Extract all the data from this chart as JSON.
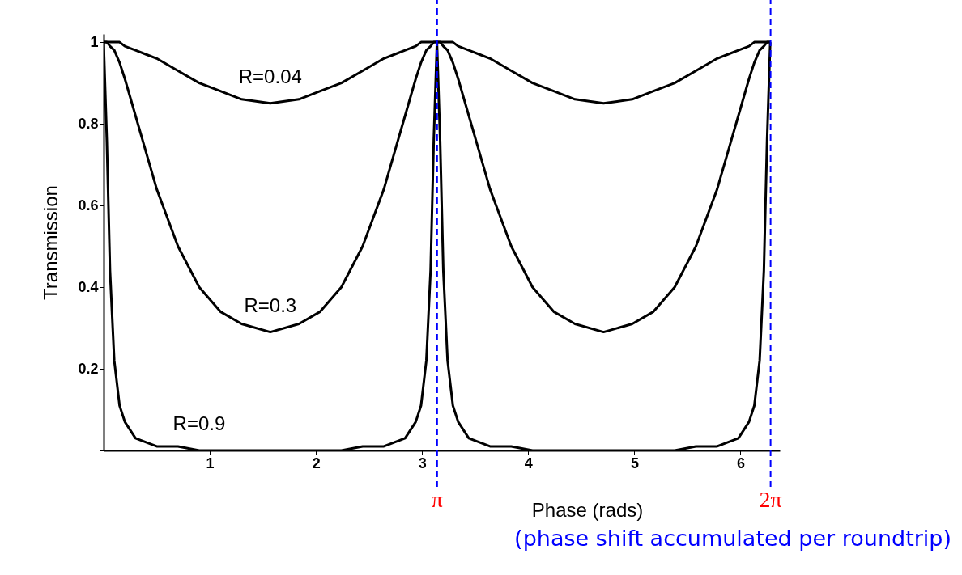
{
  "chart_data": {
    "type": "line",
    "xlabel": "Phase (rads)",
    "ylabel": "Transmission",
    "x": [
      0,
      0.03,
      0.06,
      0.1,
      0.15,
      0.2,
      0.3,
      0.4,
      0.5,
      0.7,
      0.9,
      1.1,
      1.3,
      1.57,
      1.84,
      2.04,
      2.24,
      2.44,
      2.64,
      2.74,
      2.84,
      2.94,
      2.99,
      3.04,
      3.08,
      3.11,
      3.14,
      3.17,
      3.2,
      3.24,
      3.29,
      3.34,
      3.44,
      3.54,
      3.64,
      3.84,
      4.04,
      4.24,
      4.44,
      4.71,
      4.98,
      5.18,
      5.38,
      5.58,
      5.78,
      5.88,
      5.98,
      6.08,
      6.13,
      6.18,
      6.22,
      6.25,
      6.28
    ],
    "series": [
      {
        "name": "R=0.04",
        "color": "#000000",
        "values": [
          1,
          1,
          1,
          1,
          1,
          0.99,
          0.98,
          0.97,
          0.96,
          0.93,
          0.9,
          0.88,
          0.86,
          0.85,
          0.86,
          0.88,
          0.9,
          0.93,
          0.96,
          0.97,
          0.98,
          0.99,
          1,
          1,
          1,
          1,
          1,
          1,
          1,
          1,
          1,
          0.99,
          0.98,
          0.97,
          0.96,
          0.93,
          0.9,
          0.88,
          0.86,
          0.85,
          0.86,
          0.88,
          0.9,
          0.93,
          0.96,
          0.97,
          0.98,
          0.99,
          1,
          1,
          1,
          1,
          1
        ]
      },
      {
        "name": "R=0.3",
        "color": "#000000",
        "values": [
          1,
          1,
          0.99,
          0.98,
          0.95,
          0.91,
          0.82,
          0.73,
          0.64,
          0.5,
          0.4,
          0.34,
          0.31,
          0.29,
          0.31,
          0.34,
          0.4,
          0.5,
          0.64,
          0.73,
          0.82,
          0.91,
          0.95,
          0.98,
          0.99,
          1,
          1,
          1,
          0.99,
          0.98,
          0.95,
          0.91,
          0.82,
          0.73,
          0.64,
          0.5,
          0.4,
          0.34,
          0.31,
          0.29,
          0.31,
          0.34,
          0.4,
          0.5,
          0.64,
          0.73,
          0.82,
          0.91,
          0.95,
          0.98,
          0.99,
          1,
          1
        ]
      },
      {
        "name": "R=0.9",
        "color": "#000000",
        "values": [
          1,
          0.76,
          0.44,
          0.22,
          0.11,
          0.07,
          0.03,
          0.02,
          0.01,
          0.01,
          0,
          0,
          0,
          0,
          0,
          0,
          0,
          0.01,
          0.01,
          0.02,
          0.03,
          0.07,
          0.11,
          0.22,
          0.44,
          0.76,
          1,
          0.76,
          0.44,
          0.22,
          0.11,
          0.07,
          0.03,
          0.02,
          0.01,
          0.01,
          0,
          0,
          0,
          0,
          0,
          0,
          0,
          0.01,
          0.01,
          0.02,
          0.03,
          0.07,
          0.11,
          0.22,
          0.44,
          0.76,
          1
        ]
      }
    ],
    "xlim": [
      0,
      6.37
    ],
    "ylim": [
      0,
      1.02
    ],
    "xticks": [
      {
        "value": 0,
        "label": null
      },
      1,
      2,
      3,
      4,
      5,
      6
    ],
    "yticks": [
      {
        "value": 0,
        "label": null
      },
      0.2,
      0.4,
      0.6,
      0.8,
      1
    ],
    "ref_lines": [
      {
        "axis": "x",
        "value": 3.14159,
        "label": "π",
        "color": "#0000ff",
        "line_style": "dashed"
      },
      {
        "axis": "x",
        "value": 6.28318,
        "label": "2π",
        "color": "#0000ff",
        "line_style": "dashed"
      }
    ],
    "annotations": [
      "(phase shift accumulated per roundtrip)"
    ],
    "grid": false,
    "legend": false,
    "marker": "none",
    "line_style": "solid"
  }
}
